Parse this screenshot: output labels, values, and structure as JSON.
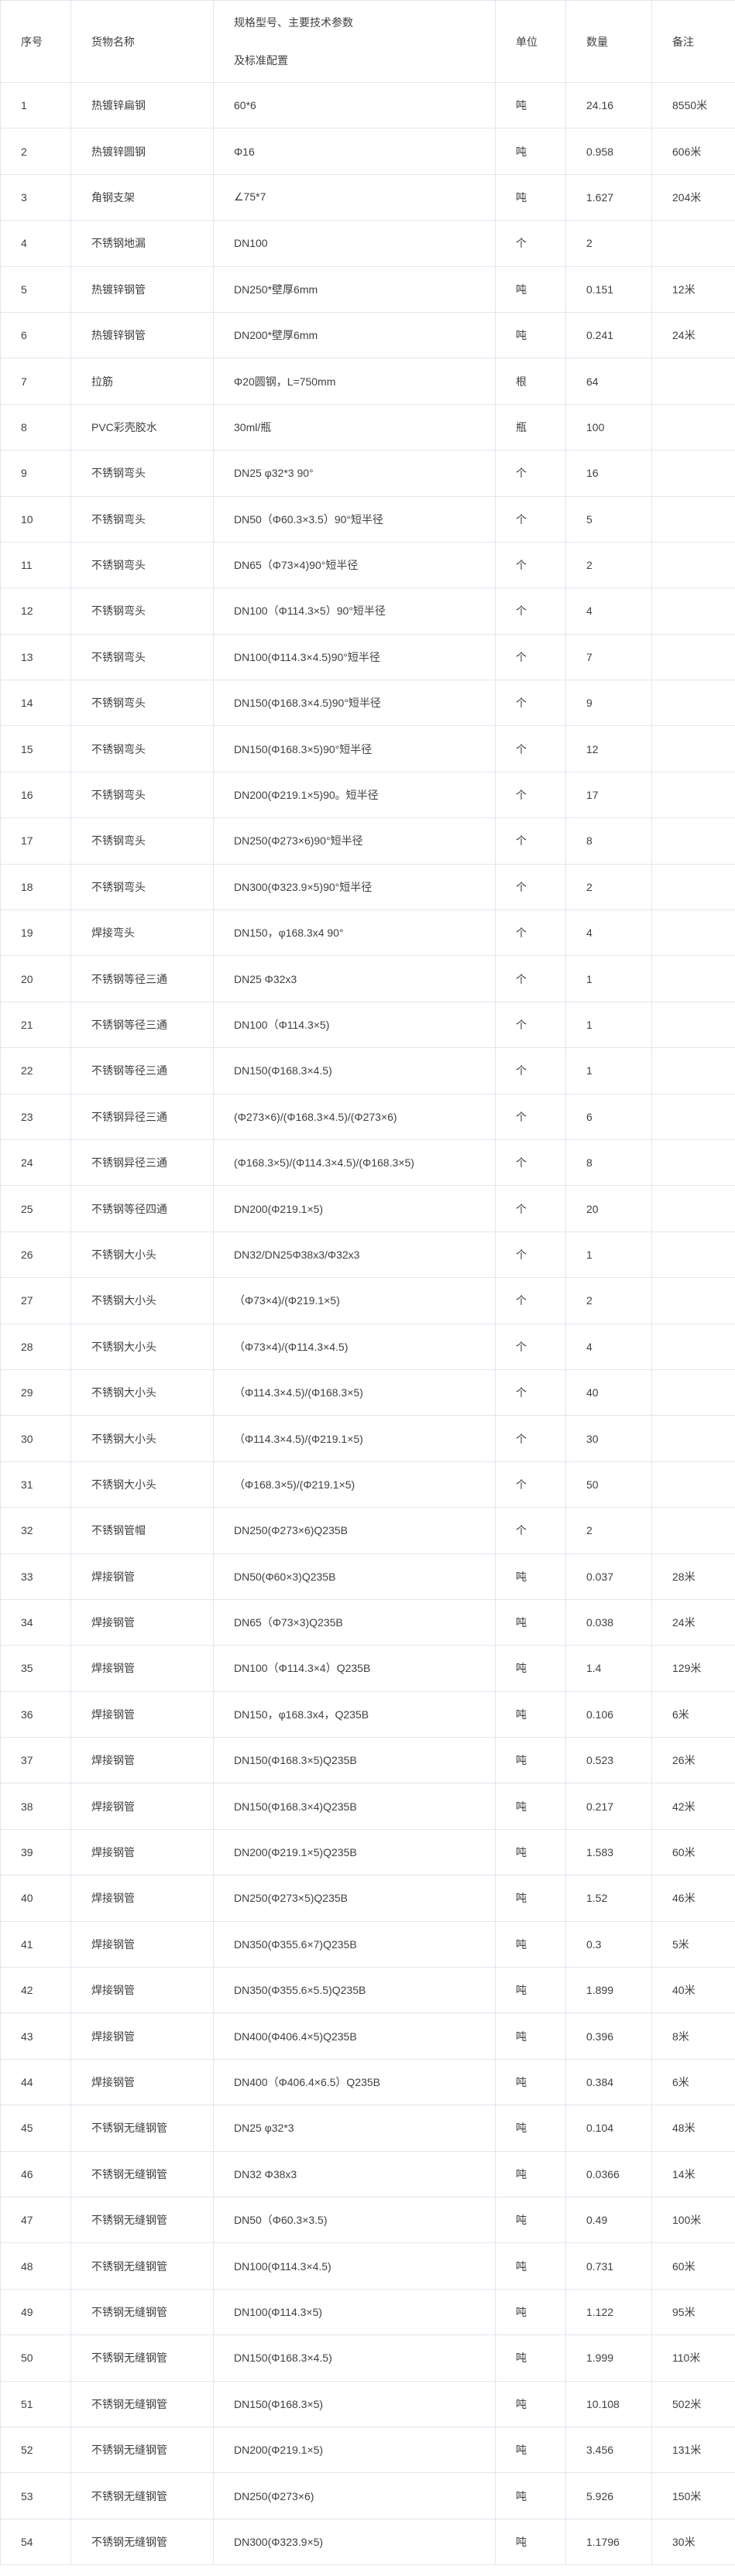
{
  "colors": {
    "border": "#e2e6f0",
    "text": "#404040",
    "background": "#ffffff"
  },
  "table": {
    "columns": [
      {
        "key": "seq",
        "label": "序号"
      },
      {
        "key": "name",
        "label": "货物名称"
      },
      {
        "key": "spec",
        "label": "规格型号、主要技术参数",
        "label_line2": "及标准配置"
      },
      {
        "key": "unit",
        "label": "单位"
      },
      {
        "key": "qty",
        "label": "数量"
      },
      {
        "key": "remark",
        "label": "备注"
      }
    ],
    "rows": [
      {
        "seq": "1",
        "name": "热镀锌扁钢",
        "spec": "60*6",
        "unit": "吨",
        "qty": "24.16",
        "remark": "8550米"
      },
      {
        "seq": "2",
        "name": "热镀锌圆钢",
        "spec": "Φ16",
        "unit": "吨",
        "qty": "0.958",
        "remark": "606米"
      },
      {
        "seq": "3",
        "name": "角钢支架",
        "spec": "∠75*7",
        "unit": "吨",
        "qty": "1.627",
        "remark": "204米"
      },
      {
        "seq": "4",
        "name": "不锈钢地漏",
        "spec": "DN100",
        "unit": "个",
        "qty": "2",
        "remark": ""
      },
      {
        "seq": "5",
        "name": "热镀锌钢管",
        "spec": "DN250*壁厚6mm",
        "unit": "吨",
        "qty": "0.151",
        "remark": "12米"
      },
      {
        "seq": "6",
        "name": "热镀锌钢管",
        "spec": "DN200*壁厚6mm",
        "unit": "吨",
        "qty": "0.241",
        "remark": "24米"
      },
      {
        "seq": "7",
        "name": "拉筋",
        "spec": "Φ20圆钢，L=750mm",
        "unit": "根",
        "qty": "64",
        "remark": ""
      },
      {
        "seq": "8",
        "name": "PVC彩壳胶水",
        "spec": "30ml/瓶",
        "unit": "瓶",
        "qty": "100",
        "remark": ""
      },
      {
        "seq": "9",
        "name": "不锈钢弯头",
        "spec": "DN25 φ32*3 90°",
        "unit": "个",
        "qty": "16",
        "remark": ""
      },
      {
        "seq": "10",
        "name": "不锈钢弯头",
        "spec": "DN50（Φ60.3×3.5）90°短半径",
        "unit": "个",
        "qty": "5",
        "remark": ""
      },
      {
        "seq": "11",
        "name": "不锈钢弯头",
        "spec": "DN65（Φ73×4)90°短半径",
        "unit": "个",
        "qty": "2",
        "remark": ""
      },
      {
        "seq": "12",
        "name": "不锈钢弯头",
        "spec": "DN100（Φ114.3×5）90°短半径",
        "unit": "个",
        "qty": "4",
        "remark": ""
      },
      {
        "seq": "13",
        "name": "不锈钢弯头",
        "spec": "DN100(Φ114.3×4.5)90°短半径",
        "unit": "个",
        "qty": "7",
        "remark": ""
      },
      {
        "seq": "14",
        "name": "不锈钢弯头",
        "spec": "DN150(Φ168.3×4.5)90°短半径",
        "unit": "个",
        "qty": "9",
        "remark": ""
      },
      {
        "seq": "15",
        "name": "不锈钢弯头",
        "spec": "DN150(Φ168.3×5)90°短半径",
        "unit": "个",
        "qty": "12",
        "remark": ""
      },
      {
        "seq": "16",
        "name": "不锈钢弯头",
        "spec": "DN200(Φ219.1×5)90。短半径",
        "unit": "个",
        "qty": "17",
        "remark": ""
      },
      {
        "seq": "17",
        "name": "不锈钢弯头",
        "spec": "DN250(Φ273×6)90°短半径",
        "unit": "个",
        "qty": "8",
        "remark": ""
      },
      {
        "seq": "18",
        "name": "不锈钢弯头",
        "spec": "DN300(Φ323.9×5)90°短半径",
        "unit": "个",
        "qty": "2",
        "remark": ""
      },
      {
        "seq": "19",
        "name": "焊接弯头",
        "spec": "DN150，φ168.3x4 90°",
        "unit": "个",
        "qty": "4",
        "remark": ""
      },
      {
        "seq": "20",
        "name": "不锈钢等径三通",
        "spec": "DN25 Φ32x3",
        "unit": "个",
        "qty": "1",
        "remark": ""
      },
      {
        "seq": "21",
        "name": "不锈钢等径三通",
        "spec": "DN100（Φ114.3×5)",
        "unit": "个",
        "qty": "1",
        "remark": ""
      },
      {
        "seq": "22",
        "name": "不锈钢等径三通",
        "spec": "DN150(Φ168.3×4.5)",
        "unit": "个",
        "qty": "1",
        "remark": ""
      },
      {
        "seq": "23",
        "name": "不锈钢异径三通",
        "spec": "(Φ273×6)/(Φ168.3×4.5)/(Φ273×6)",
        "unit": "个",
        "qty": "6",
        "remark": ""
      },
      {
        "seq": "24",
        "name": "不锈钢异径三通",
        "spec": "(Φ168.3×5)/(Φ114.3×4.5)/(Φ168.3×5)",
        "unit": "个",
        "qty": "8",
        "remark": ""
      },
      {
        "seq": "25",
        "name": "不锈钢等径四通",
        "spec": "DN200(Φ219.1×5)",
        "unit": "个",
        "qty": "20",
        "remark": ""
      },
      {
        "seq": "26",
        "name": "不锈钢大小头",
        "spec": "DN32/DN25Φ38x3/Φ32x3",
        "unit": "个",
        "qty": "1",
        "remark": ""
      },
      {
        "seq": "27",
        "name": "不锈钢大小头",
        "spec": "（Φ73×4)/(Φ219.1×5)",
        "unit": "个",
        "qty": "2",
        "remark": ""
      },
      {
        "seq": "28",
        "name": "不锈钢大小头",
        "spec": "（Φ73×4)/(Φ114.3×4.5)",
        "unit": "个",
        "qty": "4",
        "remark": ""
      },
      {
        "seq": "29",
        "name": "不锈钢大小头",
        "spec": "（Φ114.3×4.5)/(Φ168.3×5)",
        "unit": "个",
        "qty": "40",
        "remark": ""
      },
      {
        "seq": "30",
        "name": "不锈钢大小头",
        "spec": "（Φ114.3×4.5)/(Φ219.1×5)",
        "unit": "个",
        "qty": "30",
        "remark": ""
      },
      {
        "seq": "31",
        "name": "不锈钢大小头",
        "spec": "（Φ168.3×5)/(Φ219.1×5)",
        "unit": "个",
        "qty": "50",
        "remark": ""
      },
      {
        "seq": "32",
        "name": "不锈钢管帽",
        "spec": "DN250(Φ273×6)Q235B",
        "unit": "个",
        "qty": "2",
        "remark": ""
      },
      {
        "seq": "33",
        "name": "焊接钢管",
        "spec": "DN50(Φ60×3)Q235B",
        "unit": "吨",
        "qty": "0.037",
        "remark": "28米"
      },
      {
        "seq": "34",
        "name": "焊接钢管",
        "spec": "DN65（Φ73×3)Q235B",
        "unit": "吨",
        "qty": "0.038",
        "remark": "24米"
      },
      {
        "seq": "35",
        "name": "焊接钢管",
        "spec": "DN100（Φ114.3×4）Q235B",
        "unit": "吨",
        "qty": "1.4",
        "remark": "129米"
      },
      {
        "seq": "36",
        "name": "焊接钢管",
        "spec": "DN150，φ168.3x4，Q235B",
        "unit": "吨",
        "qty": "0.106",
        "remark": "6米"
      },
      {
        "seq": "37",
        "name": "焊接钢管",
        "spec": "DN150(Φ168.3×5)Q235B",
        "unit": "吨",
        "qty": "0.523",
        "remark": "26米"
      },
      {
        "seq": "38",
        "name": "焊接钢管",
        "spec": "DN150(Φ168.3×4)Q235B",
        "unit": "吨",
        "qty": "0.217",
        "remark": "42米"
      },
      {
        "seq": "39",
        "name": "焊接钢管",
        "spec": "DN200(Φ219.1×5)Q235B",
        "unit": "吨",
        "qty": "1.583",
        "remark": "60米"
      },
      {
        "seq": "40",
        "name": "焊接钢管",
        "spec": "DN250(Φ273×5)Q235B",
        "unit": "吨",
        "qty": "1.52",
        "remark": "46米"
      },
      {
        "seq": "41",
        "name": "焊接钢管",
        "spec": "DN350(Φ355.6×7)Q235B",
        "unit": "吨",
        "qty": "0.3",
        "remark": "5米"
      },
      {
        "seq": "42",
        "name": "焊接钢管",
        "spec": "DN350(Φ355.6×5.5)Q235B",
        "unit": "吨",
        "qty": "1.899",
        "remark": "40米"
      },
      {
        "seq": "43",
        "name": "焊接钢管",
        "spec": "DN400(Φ406.4×5)Q235B",
        "unit": "吨",
        "qty": "0.396",
        "remark": "8米"
      },
      {
        "seq": "44",
        "name": "焊接钢管",
        "spec": "DN400（Φ406.4×6.5）Q235B",
        "unit": "吨",
        "qty": "0.384",
        "remark": "6米"
      },
      {
        "seq": "45",
        "name": "不锈钢无缝钢管",
        "spec": "DN25 φ32*3",
        "unit": "吨",
        "qty": "0.104",
        "remark": "48米"
      },
      {
        "seq": "46",
        "name": "不锈钢无缝钢管",
        "spec": "DN32 Φ38x3",
        "unit": "吨",
        "qty": "0.0366",
        "remark": "14米"
      },
      {
        "seq": "47",
        "name": "不锈钢无缝钢管",
        "spec": "DN50（Φ60.3×3.5)",
        "unit": "吨",
        "qty": "0.49",
        "remark": "100米"
      },
      {
        "seq": "48",
        "name": "不锈钢无缝钢管",
        "spec": "DN100(Φ114.3×4.5)",
        "unit": "吨",
        "qty": "0.731",
        "remark": "60米"
      },
      {
        "seq": "49",
        "name": "不锈钢无缝钢管",
        "spec": "DN100(Φ114.3×5)",
        "unit": "吨",
        "qty": "1.122",
        "remark": "95米"
      },
      {
        "seq": "50",
        "name": "不锈钢无缝钢管",
        "spec": "DN150(Φ168.3×4.5)",
        "unit": "吨",
        "qty": "1.999",
        "remark": "110米"
      },
      {
        "seq": "51",
        "name": "不锈钢无缝钢管",
        "spec": "DN150(Φ168.3×5)",
        "unit": "吨",
        "qty": "10.108",
        "remark": "502米"
      },
      {
        "seq": "52",
        "name": "不锈钢无缝钢管",
        "spec": "DN200(Φ219.1×5)",
        "unit": "吨",
        "qty": "3.456",
        "remark": "131米"
      },
      {
        "seq": "53",
        "name": "不锈钢无缝钢管",
        "spec": "DN250(Φ273×6)",
        "unit": "吨",
        "qty": "5.926",
        "remark": "150米"
      },
      {
        "seq": "54",
        "name": "不锈钢无缝钢管",
        "spec": "DN300(Φ323.9×5)",
        "unit": "吨",
        "qty": "1.1796",
        "remark": "30米"
      }
    ]
  }
}
